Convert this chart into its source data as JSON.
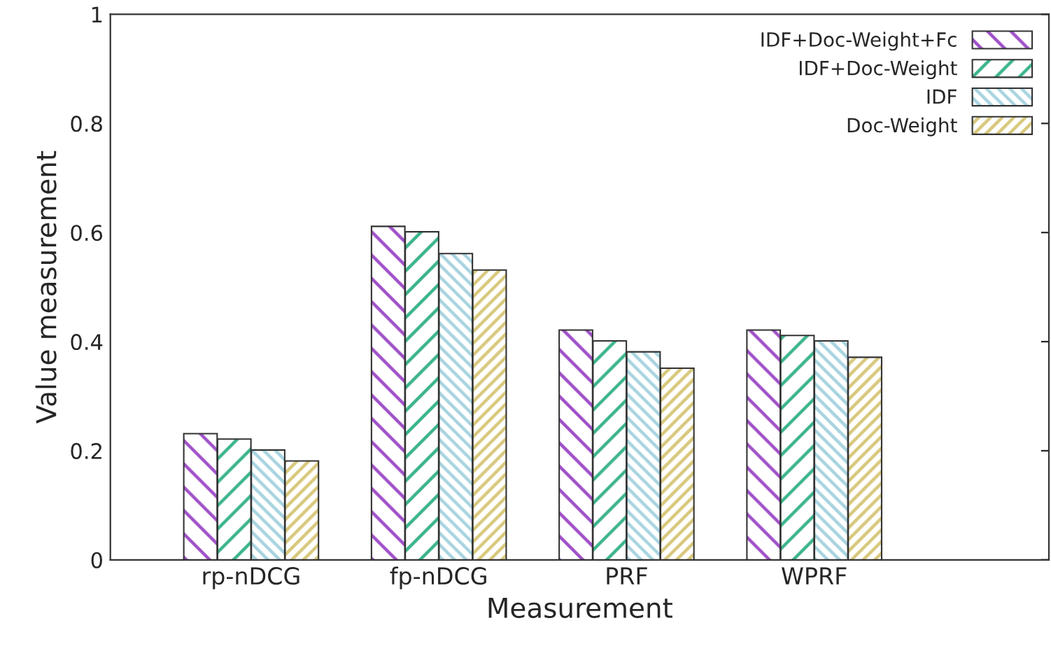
{
  "chart_data": {
    "type": "bar",
    "xlabel": "Measurement",
    "ylabel": "Value measurement",
    "categories": [
      "rp-nDCG",
      "fp-nDCG",
      "PRF",
      "WPRF"
    ],
    "series": [
      {
        "name": "IDF+Doc-Weight+Fc",
        "color": "#a050c8",
        "values": [
          0.23,
          0.61,
          0.42,
          0.42
        ]
      },
      {
        "name": "IDF+Doc-Weight",
        "color": "#3cb48c",
        "values": [
          0.22,
          0.6,
          0.4,
          0.41
        ]
      },
      {
        "name": "IDF",
        "color": "#a8d4e0",
        "values": [
          0.2,
          0.56,
          0.38,
          0.4
        ]
      },
      {
        "name": "Doc-Weight",
        "color": "#d8c87c",
        "values": [
          0.18,
          0.53,
          0.35,
          0.37
        ]
      }
    ],
    "ylim": [
      0,
      1
    ],
    "yticks": [
      0,
      0.2,
      0.4,
      0.6,
      0.8,
      1
    ],
    "grid": false,
    "legend": "top right"
  }
}
